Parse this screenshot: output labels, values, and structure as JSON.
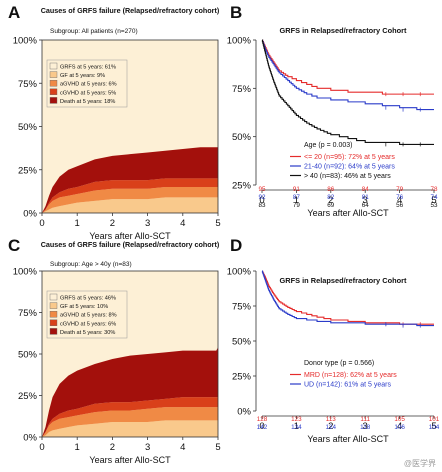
{
  "watermark": "@医学界",
  "chart_data": [
    {
      "panel_letter": "A",
      "type": "area",
      "title": "Causes of GRFS failure (Relapsed/refractory cohort)",
      "subtitle": "Subgroup: All patients (n=270)",
      "xlabel": "Years after Allo-SCT",
      "ylabel": "",
      "xlim": [
        0,
        5
      ],
      "ylim": [
        0,
        100
      ],
      "x_ticks": [
        "0",
        "1",
        "2",
        "3",
        "4",
        "5"
      ],
      "y_ticks": [
        "0%",
        "25%",
        "50%",
        "75%",
        "100%"
      ],
      "background_color": "#fdf0d6",
      "legend_position": "top-left",
      "x": [
        0,
        0.1,
        0.2,
        0.3,
        0.5,
        0.75,
        1.0,
        1.5,
        2.0,
        2.5,
        3.0,
        3.5,
        4.0,
        4.5,
        5.0
      ],
      "stack_order": "bottom-to-top: GF, aGVHD, cGVHD, Death",
      "series": [
        {
          "name": "GRFS at 5 years: 61%",
          "color": "#fdf0d6",
          "values": [
            100,
            96,
            90,
            85,
            79,
            75,
            73,
            69,
            67,
            66,
            65,
            64,
            63,
            62,
            61
          ]
        },
        {
          "name": "GF at 5 years: 9%",
          "color": "#f9c98c",
          "values": [
            0,
            1,
            2,
            3,
            4,
            5,
            6,
            7,
            8,
            8,
            8,
            9,
            9,
            9,
            9
          ]
        },
        {
          "name": "aGVHD at 5 years: 6%",
          "color": "#f08a45",
          "values": [
            0,
            1,
            3,
            4,
            5,
            5,
            5,
            6,
            6,
            6,
            6,
            6,
            6,
            6,
            6
          ]
        },
        {
          "name": "cGVHD at 5 years: 5%",
          "color": "#d9401a",
          "values": [
            0,
            0,
            1,
            2,
            3,
            4,
            4,
            5,
            5,
            5,
            5,
            5,
            5,
            5,
            5
          ]
        },
        {
          "name": "Death at 5 years: 18%",
          "color": "#a3100c",
          "values": [
            0,
            2,
            4,
            6,
            9,
            11,
            12,
            13,
            14,
            15,
            16,
            16,
            17,
            18,
            18
          ]
        }
      ]
    },
    {
      "panel_letter": "B",
      "type": "line",
      "title": "GRFS in Relapsed/refractory Cohort",
      "xlabel": "Years after Allo-SCT",
      "ylabel": "",
      "xlim": [
        0,
        5
      ],
      "ylim": [
        25,
        100
      ],
      "x_ticks": [
        "0",
        "1",
        "2",
        "3",
        "4",
        "5"
      ],
      "y_ticks": [
        "25%",
        "50%",
        "75%",
        "100%"
      ],
      "legend_title": "Age (p = 0.003)",
      "legend_position": "bottom-right",
      "risk_table_x": [
        0,
        1,
        2,
        3,
        4,
        5
      ],
      "series": [
        {
          "name": "<= 20 (n=95): 72% at 5 years",
          "color": "#e52b2b",
          "x": [
            0,
            0.1,
            0.2,
            0.35,
            0.5,
            0.75,
            1.0,
            1.3,
            1.6,
            2.0,
            2.5,
            3.0,
            3.5,
            4.0,
            4.5,
            5.0
          ],
          "values": [
            100,
            96,
            92,
            88,
            84,
            81,
            79,
            77,
            75,
            74,
            73,
            73,
            72,
            72,
            72,
            72
          ],
          "at_risk": [
            95,
            91,
            86,
            84,
            79,
            78
          ]
        },
        {
          "name": "21-40 (n=92): 64% at 5 years",
          "color": "#2a3bc9",
          "x": [
            0,
            0.1,
            0.2,
            0.35,
            0.5,
            0.75,
            1.0,
            1.3,
            1.6,
            2.0,
            2.5,
            3.0,
            3.5,
            4.0,
            4.5,
            5.0
          ],
          "values": [
            100,
            95,
            91,
            87,
            83,
            79,
            75,
            72,
            70,
            69,
            68,
            67,
            66,
            65,
            64,
            64
          ],
          "at_risk": [
            92,
            87,
            82,
            81,
            76,
            74
          ]
        },
        {
          "name": "> 40 (n=83): 46% at 5 years",
          "color": "#111111",
          "x": [
            0,
            0.1,
            0.2,
            0.35,
            0.5,
            0.75,
            1.0,
            1.3,
            1.6,
            2.0,
            2.5,
            3.0,
            3.5,
            4.0,
            4.5,
            5.0
          ],
          "values": [
            100,
            93,
            86,
            78,
            71,
            66,
            61,
            57,
            54,
            51,
            49,
            47,
            47,
            46,
            46,
            46
          ],
          "at_risk": [
            83,
            79,
            69,
            64,
            56,
            53
          ]
        }
      ]
    },
    {
      "panel_letter": "C",
      "type": "area",
      "title": "Causes of GRFS failure (Relapsed/refractory cohort)",
      "subtitle": "Subgroup: Age > 40y (n=83)",
      "xlabel": "Years after Allo-SCT",
      "ylabel": "",
      "xlim": [
        0,
        5
      ],
      "ylim": [
        0,
        100
      ],
      "x_ticks": [
        "0",
        "1",
        "2",
        "3",
        "4",
        "5"
      ],
      "y_ticks": [
        "0%",
        "25%",
        "50%",
        "75%",
        "100%"
      ],
      "background_color": "#fdf0d6",
      "legend_position": "top-left",
      "x": [
        0,
        0.1,
        0.2,
        0.3,
        0.5,
        0.75,
        1.0,
        1.5,
        2.0,
        2.5,
        3.0,
        3.5,
        4.0,
        4.5,
        4.95,
        5.0
      ],
      "stack_order": "bottom-to-top: GF, aGVHD, cGVHD, Death",
      "series": [
        {
          "name": "GRFS at 5 years: 46%",
          "color": "#fdf0d6",
          "values": [
            100,
            94,
            84,
            76,
            68,
            63,
            60,
            56,
            53,
            51,
            50,
            49,
            48,
            48,
            48,
            46
          ]
        },
        {
          "name": "GF at 5 years: 10%",
          "color": "#f9c98c",
          "values": [
            0,
            1,
            3,
            4,
            5,
            6,
            7,
            8,
            9,
            9,
            9,
            10,
            10,
            10,
            10,
            10
          ]
        },
        {
          "name": "aGVHD at 5 years: 8%",
          "color": "#f08a45",
          "values": [
            0,
            2,
            4,
            5,
            6,
            6,
            6,
            7,
            7,
            7,
            8,
            8,
            8,
            8,
            8,
            8
          ]
        },
        {
          "name": "cGVHD at 5 years: 6%",
          "color": "#d9401a",
          "values": [
            0,
            0,
            1,
            2,
            3,
            4,
            4,
            5,
            5,
            5,
            5,
            5,
            6,
            6,
            6,
            6
          ]
        },
        {
          "name": "Death at 5 years: 30%",
          "color": "#a3100c",
          "values": [
            0,
            3,
            8,
            13,
            18,
            21,
            23,
            24,
            26,
            28,
            28,
            28,
            28,
            28,
            28,
            30
          ]
        }
      ]
    },
    {
      "panel_letter": "D",
      "type": "line",
      "title": "GRFS in Relapsed/refractory Cohort",
      "xlabel": "Years after Allo-SCT",
      "ylabel": "",
      "xlim": [
        0,
        5
      ],
      "ylim": [
        0,
        100
      ],
      "x_ticks": [
        "0",
        "1",
        "2",
        "3",
        "4",
        "5"
      ],
      "y_ticks": [
        "0%",
        "25%",
        "50%",
        "75%",
        "100%"
      ],
      "legend_title": "Donor type (p = 0.566)",
      "legend_position": "bottom-right",
      "risk_table_x": [
        0,
        1,
        2,
        3,
        4,
        5
      ],
      "series": [
        {
          "name": "MRD (n=128): 62% at 5 years",
          "color": "#e52b2b",
          "x": [
            0,
            0.1,
            0.2,
            0.35,
            0.5,
            0.75,
            1.0,
            1.3,
            1.6,
            2.0,
            2.5,
            3.0,
            3.5,
            4.0,
            4.5,
            5.0
          ],
          "values": [
            100,
            95,
            89,
            83,
            78,
            74,
            71,
            69,
            67,
            65,
            64,
            63,
            63,
            62,
            62,
            62
          ],
          "at_risk": [
            128,
            123,
            113,
            111,
            105,
            101
          ]
        },
        {
          "name": "UD (n=142): 61% at 5 years",
          "color": "#2a3bc9",
          "x": [
            0,
            0.1,
            0.2,
            0.35,
            0.5,
            0.75,
            1.0,
            1.3,
            1.6,
            2.0,
            2.5,
            3.0,
            3.5,
            4.0,
            4.5,
            5.0
          ],
          "values": [
            100,
            93,
            86,
            79,
            73,
            69,
            66,
            65,
            64,
            63,
            63,
            62,
            62,
            62,
            61,
            61
          ],
          "at_risk": [
            142,
            134,
            124,
            118,
            106,
            104
          ]
        }
      ]
    }
  ]
}
